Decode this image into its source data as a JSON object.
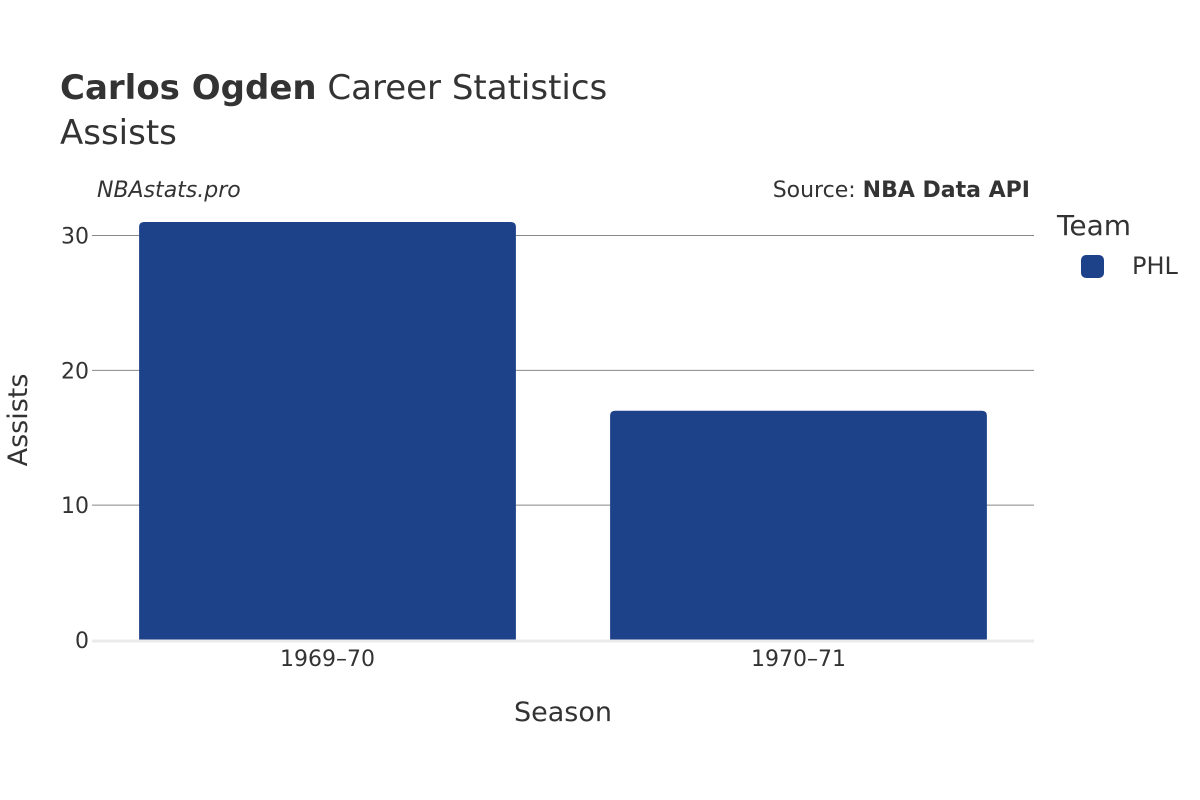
{
  "header": {
    "title_bold": "Carlos Ogden",
    "title_rest": " Career Statistics",
    "subtitle": "Assists",
    "watermark": "NBAstats.pro",
    "source_prefix": "Source: ",
    "source_name": "NBA Data API"
  },
  "legend": {
    "title": "Team",
    "items": [
      {
        "label": "PHL",
        "color": "#1d4289"
      }
    ]
  },
  "chart_data": {
    "type": "bar",
    "categories": [
      "1969–70",
      "1970–71"
    ],
    "series": [
      {
        "name": "PHL",
        "values": [
          31,
          17
        ],
        "color": "#1d4289"
      }
    ],
    "xlabel": "Season",
    "ylabel": "Assists",
    "ylim": [
      0,
      31
    ],
    "yticks": [
      0,
      10,
      20,
      30
    ],
    "grid": true,
    "legend_position": "right"
  }
}
